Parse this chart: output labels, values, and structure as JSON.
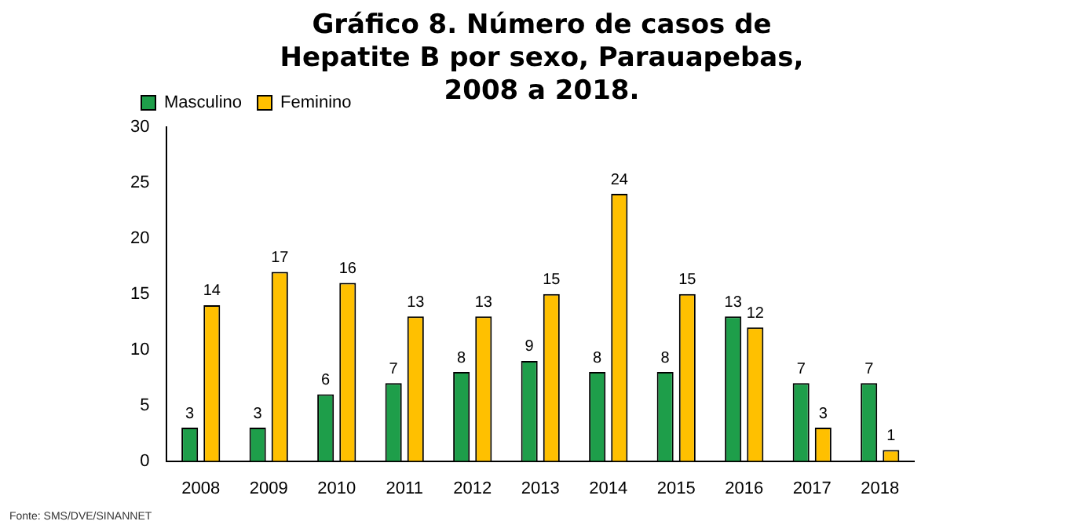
{
  "chart_data": {
    "type": "bar",
    "title": "Gráfico 8. Número de casos de Hepatite B por sexo, Parauapebas, 2008 a 2018.",
    "categories": [
      "2008",
      "2009",
      "2010",
      "2011",
      "2012",
      "2013",
      "2014",
      "2015",
      "2016",
      "2017",
      "2018"
    ],
    "series": [
      {
        "name": "Masculino",
        "color": "#1e9e4a",
        "values": [
          3,
          3,
          6,
          7,
          8,
          9,
          8,
          8,
          13,
          7,
          7
        ]
      },
      {
        "name": "Feminino",
        "color": "#ffc000",
        "values": [
          14,
          17,
          16,
          13,
          13,
          15,
          24,
          15,
          12,
          3,
          1
        ]
      }
    ],
    "ylim": [
      0,
      30
    ],
    "yticks": [
      0,
      5,
      10,
      15,
      20,
      25,
      30
    ],
    "grid": false,
    "legend": "top left",
    "data_labels": true,
    "annotations": [
      "Fonte: SMS/DVE/SINANNET"
    ]
  }
}
